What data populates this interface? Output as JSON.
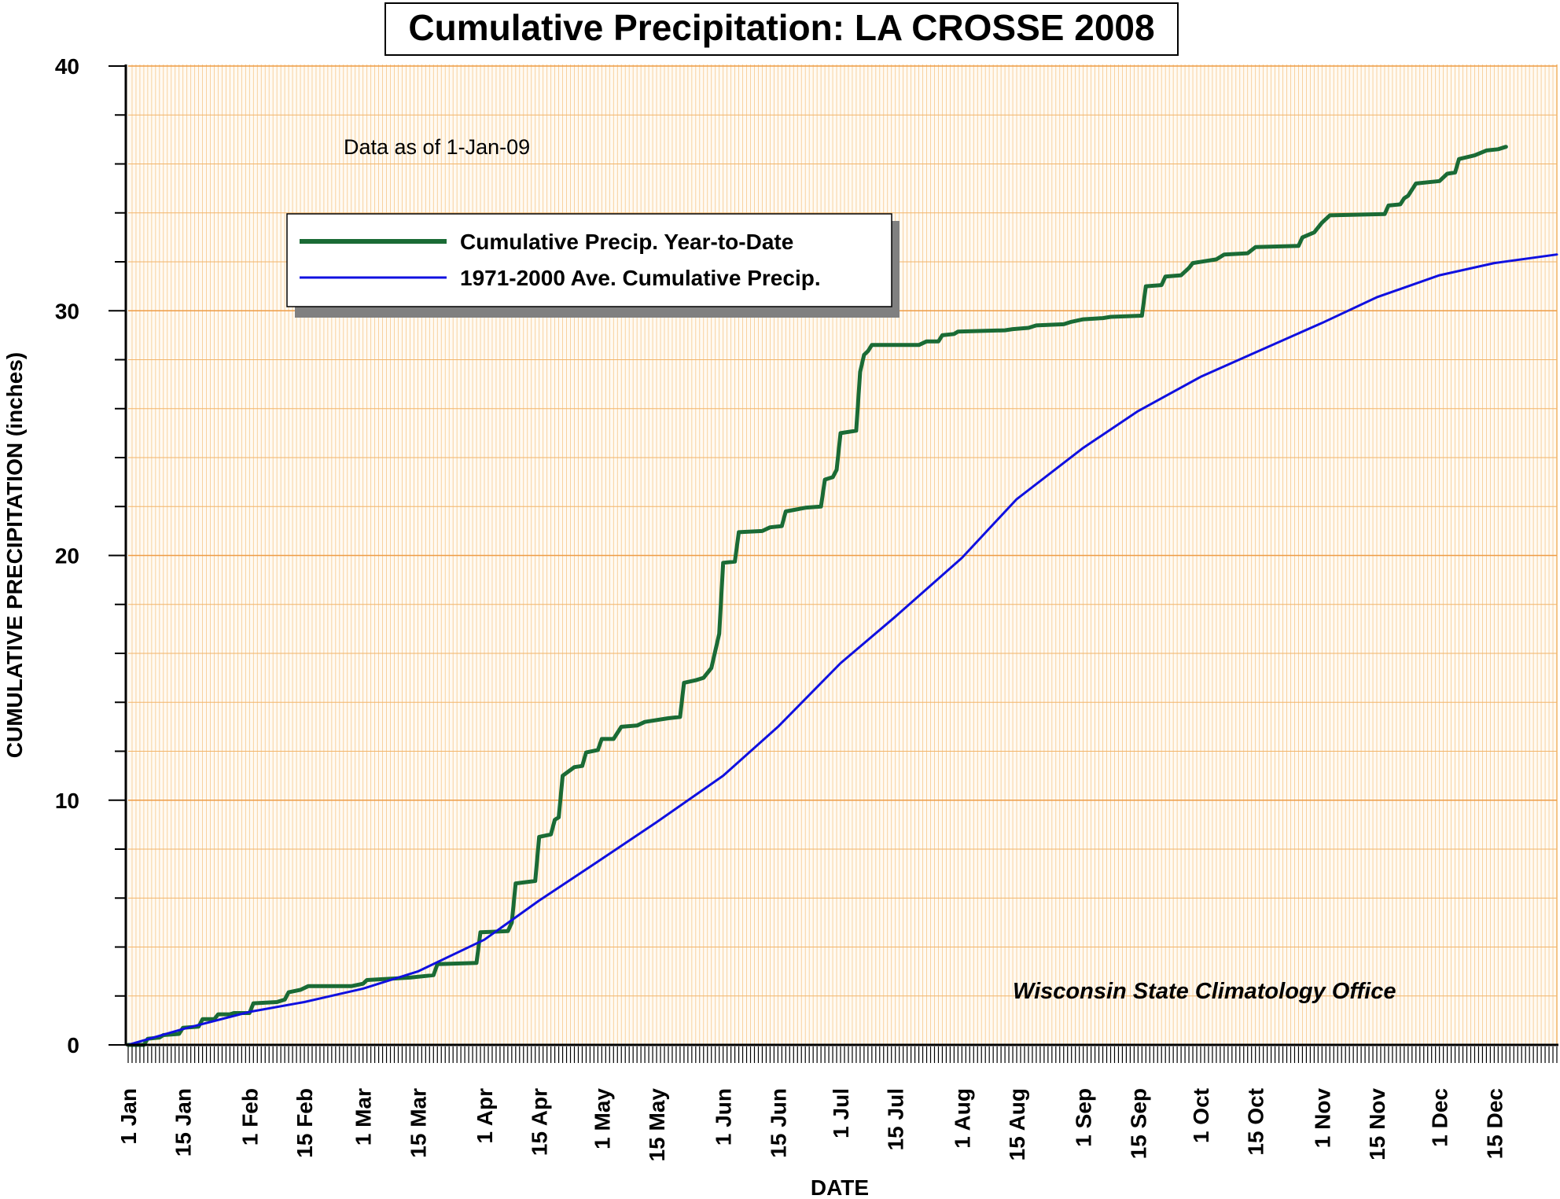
{
  "chart_data": {
    "type": "line",
    "title": "Cumulative Precipitation: LA CROSSE 2008",
    "xlabel": "DATE",
    "ylabel": "CUMULATIVE PRECIPITATION (inches)",
    "ylim": [
      0,
      40
    ],
    "xlim": [
      1,
      366
    ],
    "y_ticks": [
      0,
      10,
      20,
      30,
      40
    ],
    "x_ticks": [
      {
        "day": 1,
        "label": "1 Jan"
      },
      {
        "day": 15,
        "label": "15 Jan"
      },
      {
        "day": 32,
        "label": "1 Feb"
      },
      {
        "day": 46,
        "label": "15 Feb"
      },
      {
        "day": 61,
        "label": "1 Mar"
      },
      {
        "day": 75,
        "label": "15 Mar"
      },
      {
        "day": 92,
        "label": "1 Apr"
      },
      {
        "day": 106,
        "label": "15 Apr"
      },
      {
        "day": 122,
        "label": "1 May"
      },
      {
        "day": 136,
        "label": "15 May"
      },
      {
        "day": 153,
        "label": "1 Jun"
      },
      {
        "day": 167,
        "label": "15 Jun"
      },
      {
        "day": 183,
        "label": "1 Jul"
      },
      {
        "day": 197,
        "label": "15 Jul"
      },
      {
        "day": 214,
        "label": "1 Aug"
      },
      {
        "day": 228,
        "label": "15 Aug"
      },
      {
        "day": 245,
        "label": "1 Sep"
      },
      {
        "day": 259,
        "label": "15 Sep"
      },
      {
        "day": 275,
        "label": "1 Oct"
      },
      {
        "day": 289,
        "label": "15 Oct"
      },
      {
        "day": 306,
        "label": "1 Nov"
      },
      {
        "day": 320,
        "label": "15 Nov"
      },
      {
        "day": 336,
        "label": "1 Dec"
      },
      {
        "day": 350,
        "label": "15 Dec"
      }
    ],
    "annotation": "Data as of 1-Jan-09",
    "credit": "Wisconsin State Climatology Office",
    "grid": true,
    "legend_position": "upper-left",
    "series": [
      {
        "name": "Cumulative Precip. Year-to-Date",
        "color": "#1a6b35",
        "points": [
          [
            1,
            0.0
          ],
          [
            5,
            0.0
          ],
          [
            6,
            0.25
          ],
          [
            9,
            0.3
          ],
          [
            10,
            0.4
          ],
          [
            14,
            0.45
          ],
          [
            15,
            0.7
          ],
          [
            19,
            0.75
          ],
          [
            20,
            1.05
          ],
          [
            23,
            1.05
          ],
          [
            24,
            1.25
          ],
          [
            27,
            1.25
          ],
          [
            28,
            1.3
          ],
          [
            32,
            1.3
          ],
          [
            33,
            1.7
          ],
          [
            39,
            1.75
          ],
          [
            41,
            1.85
          ],
          [
            42,
            2.15
          ],
          [
            45,
            2.25
          ],
          [
            47,
            2.4
          ],
          [
            58,
            2.4
          ],
          [
            61,
            2.5
          ],
          [
            62,
            2.65
          ],
          [
            73,
            2.75
          ],
          [
            79,
            2.85
          ],
          [
            80,
            3.3
          ],
          [
            90,
            3.35
          ],
          [
            91,
            4.6
          ],
          [
            98,
            4.65
          ],
          [
            99,
            5.0
          ],
          [
            100,
            6.6
          ],
          [
            105,
            6.7
          ],
          [
            106,
            8.5
          ],
          [
            109,
            8.6
          ],
          [
            110,
            9.2
          ],
          [
            111,
            9.3
          ],
          [
            112,
            11.0
          ],
          [
            115,
            11.35
          ],
          [
            117,
            11.4
          ],
          [
            118,
            11.95
          ],
          [
            121,
            12.05
          ],
          [
            122,
            12.5
          ],
          [
            125,
            12.5
          ],
          [
            127,
            13.0
          ],
          [
            131,
            13.05
          ],
          [
            133,
            13.2
          ],
          [
            139,
            13.35
          ],
          [
            142,
            13.4
          ],
          [
            143,
            14.8
          ],
          [
            146,
            14.9
          ],
          [
            148,
            15.0
          ],
          [
            150,
            15.4
          ],
          [
            152,
            16.8
          ],
          [
            153,
            19.7
          ],
          [
            156,
            19.75
          ],
          [
            157,
            20.95
          ],
          [
            163,
            21.0
          ],
          [
            165,
            21.15
          ],
          [
            168,
            21.2
          ],
          [
            169,
            21.8
          ],
          [
            174,
            21.95
          ],
          [
            178,
            22.0
          ],
          [
            179,
            23.1
          ],
          [
            181,
            23.2
          ],
          [
            182,
            23.5
          ],
          [
            183,
            25.0
          ],
          [
            187,
            25.1
          ],
          [
            188,
            27.5
          ],
          [
            189,
            28.2
          ],
          [
            190,
            28.35
          ],
          [
            191,
            28.6
          ],
          [
            203,
            28.6
          ],
          [
            205,
            28.75
          ],
          [
            208,
            28.75
          ],
          [
            209,
            29.0
          ],
          [
            212,
            29.05
          ],
          [
            213,
            29.15
          ],
          [
            225,
            29.2
          ],
          [
            227,
            29.25
          ],
          [
            231,
            29.3
          ],
          [
            233,
            29.4
          ],
          [
            240,
            29.45
          ],
          [
            242,
            29.55
          ],
          [
            245,
            29.65
          ],
          [
            250,
            29.7
          ],
          [
            252,
            29.75
          ],
          [
            260,
            29.8
          ],
          [
            261,
            31.0
          ],
          [
            265,
            31.05
          ],
          [
            266,
            31.4
          ],
          [
            270,
            31.45
          ],
          [
            272,
            31.75
          ],
          [
            273,
            31.95
          ],
          [
            279,
            32.1
          ],
          [
            281,
            32.3
          ],
          [
            287,
            32.35
          ],
          [
            289,
            32.6
          ],
          [
            300,
            32.65
          ],
          [
            301,
            33.0
          ],
          [
            304,
            33.2
          ],
          [
            306,
            33.6
          ],
          [
            308,
            33.9
          ],
          [
            322,
            33.95
          ],
          [
            323,
            34.3
          ],
          [
            326,
            34.35
          ],
          [
            327,
            34.6
          ],
          [
            328,
            34.7
          ],
          [
            330,
            35.2
          ],
          [
            336,
            35.3
          ],
          [
            338,
            35.6
          ],
          [
            340,
            35.65
          ],
          [
            341,
            36.2
          ],
          [
            345,
            36.35
          ],
          [
            348,
            36.55
          ],
          [
            351,
            36.6
          ],
          [
            353,
            36.7
          ]
        ]
      },
      {
        "name": "1971-2000 Ave. Cumulative Precip.",
        "color": "#1010e0",
        "points": [
          [
            1,
            0.0
          ],
          [
            15,
            0.65
          ],
          [
            32,
            1.35
          ],
          [
            46,
            1.75
          ],
          [
            61,
            2.3
          ],
          [
            75,
            3.0
          ],
          [
            92,
            4.3
          ],
          [
            106,
            5.9
          ],
          [
            122,
            7.6
          ],
          [
            136,
            9.1
          ],
          [
            153,
            11.0
          ],
          [
            167,
            13.0
          ],
          [
            183,
            15.6
          ],
          [
            197,
            17.5
          ],
          [
            214,
            19.9
          ],
          [
            228,
            22.3
          ],
          [
            245,
            24.4
          ],
          [
            259,
            25.9
          ],
          [
            275,
            27.3
          ],
          [
            289,
            28.3
          ],
          [
            306,
            29.5
          ],
          [
            320,
            30.55
          ],
          [
            336,
            31.45
          ],
          [
            350,
            31.95
          ],
          [
            366,
            32.3
          ]
        ]
      }
    ]
  }
}
